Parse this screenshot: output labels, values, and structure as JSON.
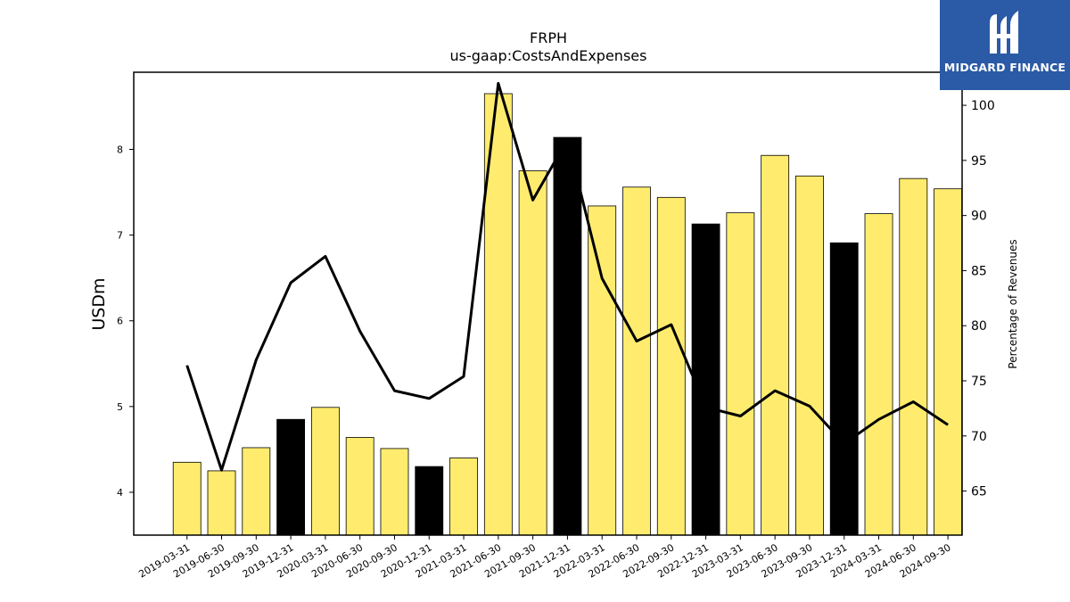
{
  "brand": {
    "name": "MIDGARD FINANCE",
    "bg_color": "#2b5aa6"
  },
  "chart_data": {
    "type": "bar",
    "title": "FRPH",
    "subtitle": "us-gaap:CostsAndExpenses",
    "ylabel": "USDm",
    "y2label": "Percentage of Revenues",
    "ylim": [
      3.5,
      8.9
    ],
    "y2lim": [
      61,
      103
    ],
    "yticks": [
      4,
      5,
      6,
      7,
      8
    ],
    "y2ticks": [
      65,
      70,
      75,
      80,
      85,
      90,
      95,
      100
    ],
    "bar_color": "#ffec6e",
    "highlight_color": "#000000",
    "line_color": "#000000",
    "categories": [
      "2019-03-31",
      "2019-06-30",
      "2019-09-30",
      "2019-12-31",
      "2020-03-31",
      "2020-06-30",
      "2020-09-30",
      "2020-12-31",
      "2021-03-31",
      "2021-06-30",
      "2021-09-30",
      "2021-12-31",
      "2022-03-31",
      "2022-06-30",
      "2022-09-30",
      "2022-12-31",
      "2023-03-31",
      "2023-06-30",
      "2023-09-30",
      "2023-12-31",
      "2024-03-31",
      "2024-06-30",
      "2024-09-30"
    ],
    "series": [
      {
        "type": "bar",
        "values": [
          4.35,
          4.25,
          4.52,
          4.85,
          4.99,
          4.64,
          4.51,
          4.3,
          4.4,
          8.65,
          7.75,
          8.14,
          7.34,
          7.56,
          7.44,
          7.13,
          7.26,
          7.93,
          7.69,
          6.91,
          7.25,
          7.66,
          7.54
        ],
        "highlight": [
          false,
          false,
          false,
          true,
          false,
          false,
          false,
          true,
          false,
          false,
          false,
          true,
          false,
          false,
          false,
          true,
          false,
          false,
          false,
          true,
          false,
          false,
          false
        ]
      },
      {
        "type": "line",
        "axis": "right",
        "values": [
          76.4,
          66.9,
          76.9,
          83.9,
          86.3,
          79.5,
          74.1,
          73.4,
          75.4,
          102.0,
          91.4,
          96.9,
          84.3,
          78.6,
          80.1,
          72.6,
          71.8,
          74.1,
          72.7,
          69.3,
          71.5,
          73.1,
          71.0
        ]
      }
    ]
  }
}
